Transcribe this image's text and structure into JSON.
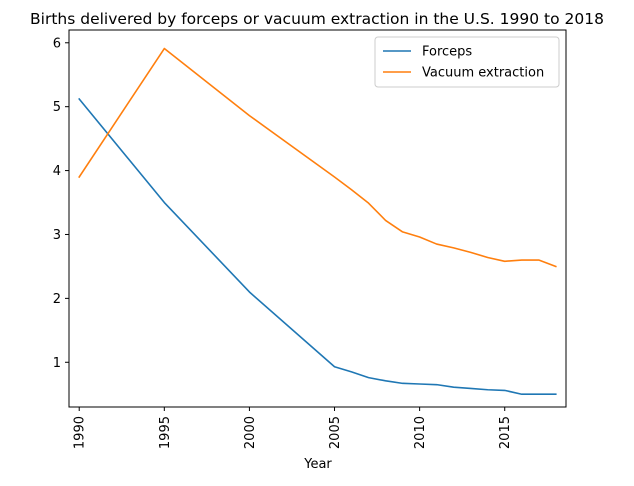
{
  "chart_data": {
    "type": "line",
    "title": "Births delivered by forceps or vacuum extraction in the U.S. 1990 to 2018",
    "xlabel": "Year",
    "ylabel": "",
    "xlim": [
      1989.4,
      2018.6
    ],
    "ylim": [
      0.3,
      6.2
    ],
    "xticks": [
      1990,
      1995,
      2000,
      2005,
      2010,
      2015
    ],
    "yticks": [
      1,
      2,
      3,
      4,
      5,
      6
    ],
    "grid": false,
    "legend": "top-right",
    "series": [
      {
        "name": "Forceps",
        "color": "#1f77b4",
        "x": [
          1990,
          1995,
          2000,
          2005,
          2006,
          2007,
          2008,
          2009,
          2010,
          2011,
          2012,
          2013,
          2014,
          2015,
          2016,
          2017,
          2018
        ],
        "y": [
          5.12,
          3.5,
          2.1,
          0.93,
          0.85,
          0.76,
          0.71,
          0.67,
          0.66,
          0.65,
          0.61,
          0.59,
          0.57,
          0.56,
          0.5,
          0.5,
          0.5
        ]
      },
      {
        "name": "Vacuum extraction",
        "color": "#ff7f0e",
        "x": [
          1990,
          1995,
          2000,
          2005,
          2006,
          2007,
          2008,
          2009,
          2010,
          2011,
          2012,
          2013,
          2014,
          2015,
          2016,
          2017,
          2018
        ],
        "y": [
          3.9,
          5.91,
          4.86,
          3.9,
          3.7,
          3.49,
          3.22,
          3.04,
          2.96,
          2.85,
          2.79,
          2.72,
          2.64,
          2.58,
          2.6,
          2.6,
          2.5
        ]
      }
    ]
  }
}
